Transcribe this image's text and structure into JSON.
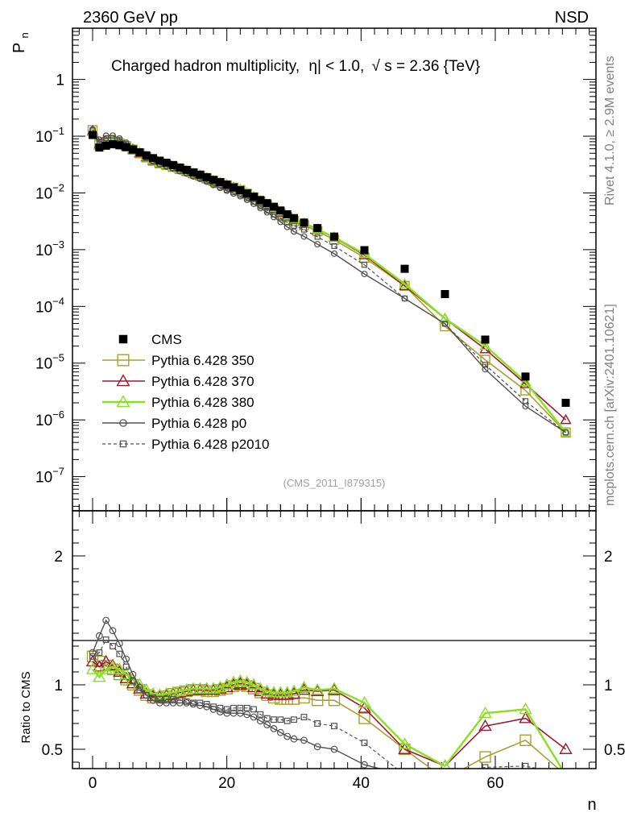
{
  "header": {
    "left": "2360 GeV pp",
    "right": "NSD"
  },
  "side_labels": {
    "top": "Rivet 4.1.0, ≥ 2.9M events",
    "bottom": "mcplots.cern.ch [arXiv:2401.10621]"
  },
  "title": {
    "main": "Charged hadron multiplicity,",
    "eta": "η| < 1.0,",
    "sqrt_symbol": "√",
    "s_eq": "s = 2.36 {TeV}"
  },
  "analysis_id": "(CMS_2011_I879315)",
  "axes": {
    "y_main": {
      "base": "P",
      "sub": "n"
    },
    "y_ratio": "Ratio to CMS",
    "x": "n",
    "x_ticks": [
      "0",
      "20",
      "40",
      "60"
    ],
    "y_main_ticks": [
      {
        "base": "1",
        "exp": ""
      },
      {
        "base": "10",
        "exp": "−1"
      },
      {
        "base": "10",
        "exp": "−2"
      },
      {
        "base": "10",
        "exp": "−3"
      },
      {
        "base": "10",
        "exp": "−4"
      },
      {
        "base": "10",
        "exp": "−5"
      },
      {
        "base": "10",
        "exp": "−6"
      },
      {
        "base": "10",
        "exp": "−7"
      }
    ],
    "y_ratio_ticks": [
      "2",
      "1",
      "0.5"
    ]
  },
  "legend": [
    {
      "label": "CMS",
      "key": "cms"
    },
    {
      "label": "Pythia 6.428 350",
      "key": "p350"
    },
    {
      "label": "Pythia 6.428 370",
      "key": "p370"
    },
    {
      "label": "Pythia 6.428 380",
      "key": "p380"
    },
    {
      "label": "Pythia 6.428 p0",
      "key": "p0"
    },
    {
      "label": "Pythia 6.428 p2010",
      "key": "p2010"
    }
  ],
  "colors": {
    "cms": "#000000",
    "p350": "#a8a030",
    "p370": "#a01830",
    "p380": "#88e020",
    "p0": "#505050",
    "p2010": "#505050"
  },
  "chart_data": {
    "type": "line",
    "title": "Charged hadron multiplicity, |η| < 1.0, √s = 2.36 {TeV}",
    "xlabel": "n",
    "ylabel": "P_n",
    "ratio_ylabel": "Ratio to CMS",
    "xlim": [
      -3,
      75
    ],
    "ylim": [
      2.5e-08,
      8
    ],
    "ratio_ylim": [
      0.35,
      2.35
    ],
    "yscale": "log",
    "x": [
      0,
      1,
      2,
      3,
      4,
      5,
      6,
      7,
      8,
      9,
      10,
      11,
      12,
      13,
      14,
      15,
      16,
      17,
      18,
      19,
      20,
      21,
      22,
      23,
      24,
      25,
      26,
      27,
      28,
      29,
      30,
      31.5,
      33.5,
      36,
      40.5,
      46.5,
      52.5,
      58.5,
      64.5,
      70.5
    ],
    "cms": [
      0.105,
      0.063,
      0.068,
      0.072,
      0.069,
      0.064,
      0.058,
      0.052,
      0.046,
      0.041,
      0.037,
      0.034,
      0.031,
      0.028,
      0.0255,
      0.023,
      0.021,
      0.019,
      0.017,
      0.0155,
      0.014,
      0.0125,
      0.0112,
      0.0098,
      0.0086,
      0.0075,
      0.0066,
      0.0057,
      0.0049,
      0.0042,
      0.0036,
      0.003,
      0.0024,
      0.0017,
      0.00098,
      0.00046,
      0.000165,
      2.6e-05,
      5.8e-06,
      2e-06
    ],
    "series": [
      {
        "name": "Pythia 6.428 350",
        "key": "p350",
        "ratio": [
          1.22,
          1.18,
          1.15,
          1.12,
          1.08,
          1.04,
          1.0,
          0.96,
          0.92,
          0.9,
          0.9,
          0.91,
          0.93,
          0.94,
          0.95,
          0.96,
          0.96,
          0.95,
          0.95,
          0.96,
          0.97,
          0.99,
          1.0,
          0.99,
          0.97,
          0.94,
          0.92,
          0.9,
          0.89,
          0.89,
          0.89,
          0.9,
          0.88,
          0.88,
          0.74,
          0.5,
          0.27,
          0.44,
          0.57,
          0.3
        ]
      },
      {
        "name": "Pythia 6.428 370",
        "key": "p370",
        "ratio": [
          1.18,
          1.14,
          1.18,
          1.15,
          1.1,
          1.05,
          1.01,
          0.97,
          0.93,
          0.91,
          0.91,
          0.92,
          0.93,
          0.94,
          0.95,
          0.96,
          0.96,
          0.96,
          0.96,
          0.97,
          0.98,
          1.0,
          1.01,
          1.0,
          0.98,
          0.95,
          0.93,
          0.92,
          0.92,
          0.92,
          0.93,
          0.96,
          0.95,
          0.96,
          0.82,
          0.5,
          0.37,
          0.68,
          0.74,
          0.5
        ]
      },
      {
        "name": "Pythia 6.428 380",
        "key": "p380",
        "ratio": [
          1.12,
          1.06,
          1.12,
          1.14,
          1.12,
          1.08,
          1.04,
          1.0,
          0.96,
          0.93,
          0.92,
          0.93,
          0.94,
          0.95,
          0.96,
          0.97,
          0.97,
          0.97,
          0.97,
          0.98,
          1.0,
          1.02,
          1.03,
          1.02,
          1.0,
          0.97,
          0.95,
          0.94,
          0.94,
          0.94,
          0.95,
          0.98,
          0.96,
          0.97,
          0.86,
          0.54,
          0.37,
          0.78,
          0.81,
          0.3
        ]
      },
      {
        "name": "Pythia 6.428 p0",
        "key": "p0",
        "ratio": [
          1.25,
          1.38,
          1.5,
          1.42,
          1.32,
          1.2,
          1.08,
          0.98,
          0.92,
          0.88,
          0.86,
          0.86,
          0.86,
          0.86,
          0.86,
          0.85,
          0.84,
          0.83,
          0.81,
          0.79,
          0.78,
          0.78,
          0.78,
          0.77,
          0.75,
          0.72,
          0.69,
          0.66,
          0.63,
          0.6,
          0.58,
          0.57,
          0.52,
          0.5,
          0.38,
          0.3,
          0.3,
          0.3,
          0.3,
          0.3
        ]
      },
      {
        "name": "Pythia 6.428 p2010",
        "key": "p2010",
        "ratio": [
          1.22,
          1.25,
          1.35,
          1.3,
          1.24,
          1.14,
          1.03,
          0.96,
          0.92,
          0.9,
          0.89,
          0.89,
          0.89,
          0.88,
          0.87,
          0.86,
          0.86,
          0.85,
          0.83,
          0.82,
          0.81,
          0.82,
          0.82,
          0.82,
          0.81,
          0.77,
          0.74,
          0.73,
          0.73,
          0.72,
          0.73,
          0.75,
          0.7,
          0.68,
          0.55,
          0.3,
          0.3,
          0.36,
          0.37,
          0.3
        ]
      }
    ]
  }
}
